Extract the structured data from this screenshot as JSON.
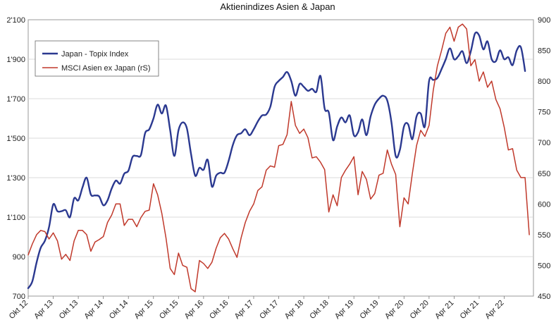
{
  "chart_data": {
    "type": "line",
    "title": "Aktienindizes Asien & Japan",
    "left_axis": {
      "ylim": [
        700,
        2100
      ],
      "ticks": [
        700,
        900,
        1100,
        1300,
        1500,
        1700,
        1900,
        2100
      ],
      "tick_labels": [
        "700",
        "900",
        "1'100",
        "1'300",
        "1'500",
        "1'700",
        "1'900",
        "2'100"
      ]
    },
    "right_axis": {
      "ylim": [
        450,
        900
      ],
      "ticks": [
        450,
        500,
        550,
        600,
        650,
        700,
        750,
        800,
        850,
        900
      ],
      "tick_labels": [
        "450",
        "500",
        "550",
        "600",
        "650",
        "700",
        "750",
        "800",
        "850",
        "900"
      ]
    },
    "x_range": [
      0,
      121
    ],
    "x_ticks": [
      {
        "pos": 0,
        "label": "Okt 12"
      },
      {
        "pos": 6,
        "label": "Apr 13"
      },
      {
        "pos": 12,
        "label": "Okt 13"
      },
      {
        "pos": 18,
        "label": "Apr 14"
      },
      {
        "pos": 24,
        "label": "Okt 14"
      },
      {
        "pos": 30,
        "label": "Apr 15"
      },
      {
        "pos": 36,
        "label": "Okt 15"
      },
      {
        "pos": 42,
        "label": "Apr 16"
      },
      {
        "pos": 48,
        "label": "Okt 16"
      },
      {
        "pos": 54,
        "label": "Apr 17"
      },
      {
        "pos": 60,
        "label": "Okt 17"
      },
      {
        "pos": 66,
        "label": "Apr 18"
      },
      {
        "pos": 72,
        "label": "Okt 18"
      },
      {
        "pos": 78,
        "label": "Apr 19"
      },
      {
        "pos": 84,
        "label": "Okt 19"
      },
      {
        "pos": 90,
        "label": "Apr 20"
      },
      {
        "pos": 96,
        "label": "Okt 20"
      },
      {
        "pos": 102,
        "label": "Apr 21"
      },
      {
        "pos": 108,
        "label": "Okt 21"
      },
      {
        "pos": 114,
        "label": "Apr 22"
      }
    ],
    "grid": true,
    "legend_position": "top-left",
    "series": [
      {
        "name": "Japan - Topix Index",
        "axis": "left",
        "color": "#2b3990",
        "points": [
          [
            0,
            740
          ],
          [
            1,
            775
          ],
          [
            2,
            870
          ],
          [
            3,
            945
          ],
          [
            4,
            980
          ],
          [
            5,
            1050
          ],
          [
            6,
            1165
          ],
          [
            7,
            1130
          ],
          [
            8,
            1130
          ],
          [
            9,
            1135
          ],
          [
            10,
            1100
          ],
          [
            11,
            1195
          ],
          [
            12,
            1185
          ],
          [
            13,
            1250
          ],
          [
            14,
            1300
          ],
          [
            15,
            1215
          ],
          [
            16,
            1210
          ],
          [
            17,
            1205
          ],
          [
            18,
            1160
          ],
          [
            19,
            1185
          ],
          [
            20,
            1245
          ],
          [
            21,
            1285
          ],
          [
            22,
            1270
          ],
          [
            23,
            1320
          ],
          [
            24,
            1335
          ],
          [
            25,
            1405
          ],
          [
            26,
            1410
          ],
          [
            27,
            1415
          ],
          [
            28,
            1525
          ],
          [
            29,
            1545
          ],
          [
            30,
            1600
          ],
          [
            31,
            1670
          ],
          [
            32,
            1625
          ],
          [
            33,
            1665
          ],
          [
            34,
            1540
          ],
          [
            35,
            1410
          ],
          [
            36,
            1540
          ],
          [
            37,
            1580
          ],
          [
            38,
            1550
          ],
          [
            39,
            1420
          ],
          [
            40,
            1310
          ],
          [
            41,
            1350
          ],
          [
            42,
            1340
          ],
          [
            43,
            1390
          ],
          [
            44,
            1255
          ],
          [
            45,
            1310
          ],
          [
            46,
            1325
          ],
          [
            47,
            1325
          ],
          [
            48,
            1385
          ],
          [
            49,
            1465
          ],
          [
            50,
            1515
          ],
          [
            51,
            1525
          ],
          [
            52,
            1545
          ],
          [
            53,
            1515
          ],
          [
            54,
            1545
          ],
          [
            55,
            1585
          ],
          [
            56,
            1615
          ],
          [
            57,
            1620
          ],
          [
            58,
            1660
          ],
          [
            59,
            1760
          ],
          [
            60,
            1790
          ],
          [
            61,
            1810
          ],
          [
            62,
            1835
          ],
          [
            63,
            1790
          ],
          [
            64,
            1715
          ],
          [
            65,
            1775
          ],
          [
            66,
            1760
          ],
          [
            67,
            1740
          ],
          [
            68,
            1750
          ],
          [
            69,
            1735
          ],
          [
            70,
            1815
          ],
          [
            71,
            1650
          ],
          [
            72,
            1630
          ],
          [
            73,
            1490
          ],
          [
            74,
            1560
          ],
          [
            75,
            1605
          ],
          [
            76,
            1580
          ],
          [
            77,
            1615
          ],
          [
            78,
            1515
          ],
          [
            79,
            1530
          ],
          [
            80,
            1595
          ],
          [
            81,
            1515
          ],
          [
            82,
            1610
          ],
          [
            83,
            1670
          ],
          [
            84,
            1700
          ],
          [
            85,
            1715
          ],
          [
            86,
            1690
          ],
          [
            87,
            1580
          ],
          [
            88,
            1410
          ],
          [
            89,
            1440
          ],
          [
            90,
            1560
          ],
          [
            91,
            1570
          ],
          [
            92,
            1495
          ],
          [
            93,
            1610
          ],
          [
            94,
            1625
          ],
          [
            95,
            1560
          ],
          [
            96,
            1790
          ],
          [
            97,
            1795
          ],
          [
            98,
            1805
          ],
          [
            99,
            1850
          ],
          [
            100,
            1900
          ],
          [
            101,
            1955
          ],
          [
            102,
            1900
          ],
          [
            103,
            1915
          ],
          [
            104,
            1940
          ],
          [
            105,
            1880
          ],
          [
            106,
            1940
          ],
          [
            107,
            2030
          ],
          [
            108,
            2020
          ],
          [
            109,
            1950
          ],
          [
            110,
            1990
          ],
          [
            111,
            1900
          ],
          [
            112,
            1890
          ],
          [
            113,
            1945
          ],
          [
            114,
            1900
          ],
          [
            115,
            1910
          ],
          [
            116,
            1870
          ],
          [
            117,
            1945
          ],
          [
            118,
            1960
          ],
          [
            119,
            1840
          ]
        ]
      },
      {
        "name": "MSCI Asien ex Japan (rS)",
        "axis": "right",
        "color": "#c0392b",
        "points": [
          [
            0,
            517
          ],
          [
            1,
            535
          ],
          [
            2,
            550
          ],
          [
            3,
            557
          ],
          [
            4,
            555
          ],
          [
            5,
            543
          ],
          [
            6,
            553
          ],
          [
            7,
            540
          ],
          [
            8,
            510
          ],
          [
            9,
            518
          ],
          [
            10,
            508
          ],
          [
            11,
            540
          ],
          [
            12,
            557
          ],
          [
            13,
            557
          ],
          [
            14,
            550
          ],
          [
            15,
            523
          ],
          [
            16,
            538
          ],
          [
            17,
            542
          ],
          [
            18,
            547
          ],
          [
            19,
            570
          ],
          [
            20,
            582
          ],
          [
            21,
            600
          ],
          [
            22,
            600
          ],
          [
            23,
            565
          ],
          [
            24,
            575
          ],
          [
            25,
            575
          ],
          [
            26,
            563
          ],
          [
            27,
            578
          ],
          [
            28,
            588
          ],
          [
            29,
            590
          ],
          [
            30,
            633
          ],
          [
            31,
            615
          ],
          [
            32,
            585
          ],
          [
            33,
            545
          ],
          [
            34,
            495
          ],
          [
            35,
            485
          ],
          [
            36,
            520
          ],
          [
            37,
            500
          ],
          [
            38,
            497
          ],
          [
            39,
            462
          ],
          [
            40,
            457
          ],
          [
            41,
            508
          ],
          [
            42,
            503
          ],
          [
            43,
            495
          ],
          [
            44,
            505
          ],
          [
            45,
            528
          ],
          [
            46,
            545
          ],
          [
            47,
            552
          ],
          [
            48,
            543
          ],
          [
            49,
            527
          ],
          [
            50,
            513
          ],
          [
            51,
            545
          ],
          [
            52,
            570
          ],
          [
            53,
            588
          ],
          [
            54,
            600
          ],
          [
            55,
            622
          ],
          [
            56,
            628
          ],
          [
            57,
            655
          ],
          [
            58,
            662
          ],
          [
            59,
            660
          ],
          [
            60,
            695
          ],
          [
            61,
            697
          ],
          [
            62,
            713
          ],
          [
            63,
            767
          ],
          [
            64,
            728
          ],
          [
            65,
            715
          ],
          [
            66,
            722
          ],
          [
            67,
            708
          ],
          [
            68,
            675
          ],
          [
            69,
            677
          ],
          [
            70,
            668
          ],
          [
            71,
            656
          ],
          [
            72,
            587
          ],
          [
            73,
            615
          ],
          [
            74,
            597
          ],
          [
            75,
            643
          ],
          [
            76,
            655
          ],
          [
            77,
            665
          ],
          [
            78,
            677
          ],
          [
            79,
            615
          ],
          [
            80,
            653
          ],
          [
            81,
            640
          ],
          [
            82,
            608
          ],
          [
            83,
            617
          ],
          [
            84,
            647
          ],
          [
            85,
            650
          ],
          [
            86,
            688
          ],
          [
            87,
            665
          ],
          [
            88,
            648
          ],
          [
            89,
            563
          ],
          [
            90,
            610
          ],
          [
            91,
            600
          ],
          [
            92,
            650
          ],
          [
            93,
            695
          ],
          [
            94,
            720
          ],
          [
            95,
            710
          ],
          [
            96,
            728
          ],
          [
            97,
            785
          ],
          [
            98,
            825
          ],
          [
            99,
            850
          ],
          [
            100,
            878
          ],
          [
            101,
            888
          ],
          [
            102,
            865
          ],
          [
            103,
            888
          ],
          [
            104,
            893
          ],
          [
            105,
            885
          ],
          [
            106,
            825
          ],
          [
            107,
            835
          ],
          [
            108,
            800
          ],
          [
            109,
            815
          ],
          [
            110,
            790
          ],
          [
            111,
            800
          ],
          [
            112,
            770
          ],
          [
            113,
            755
          ],
          [
            114,
            725
          ],
          [
            115,
            688
          ],
          [
            116,
            690
          ],
          [
            117,
            655
          ],
          [
            118,
            643
          ],
          [
            119,
            643
          ],
          [
            120,
            550
          ]
        ]
      }
    ]
  }
}
